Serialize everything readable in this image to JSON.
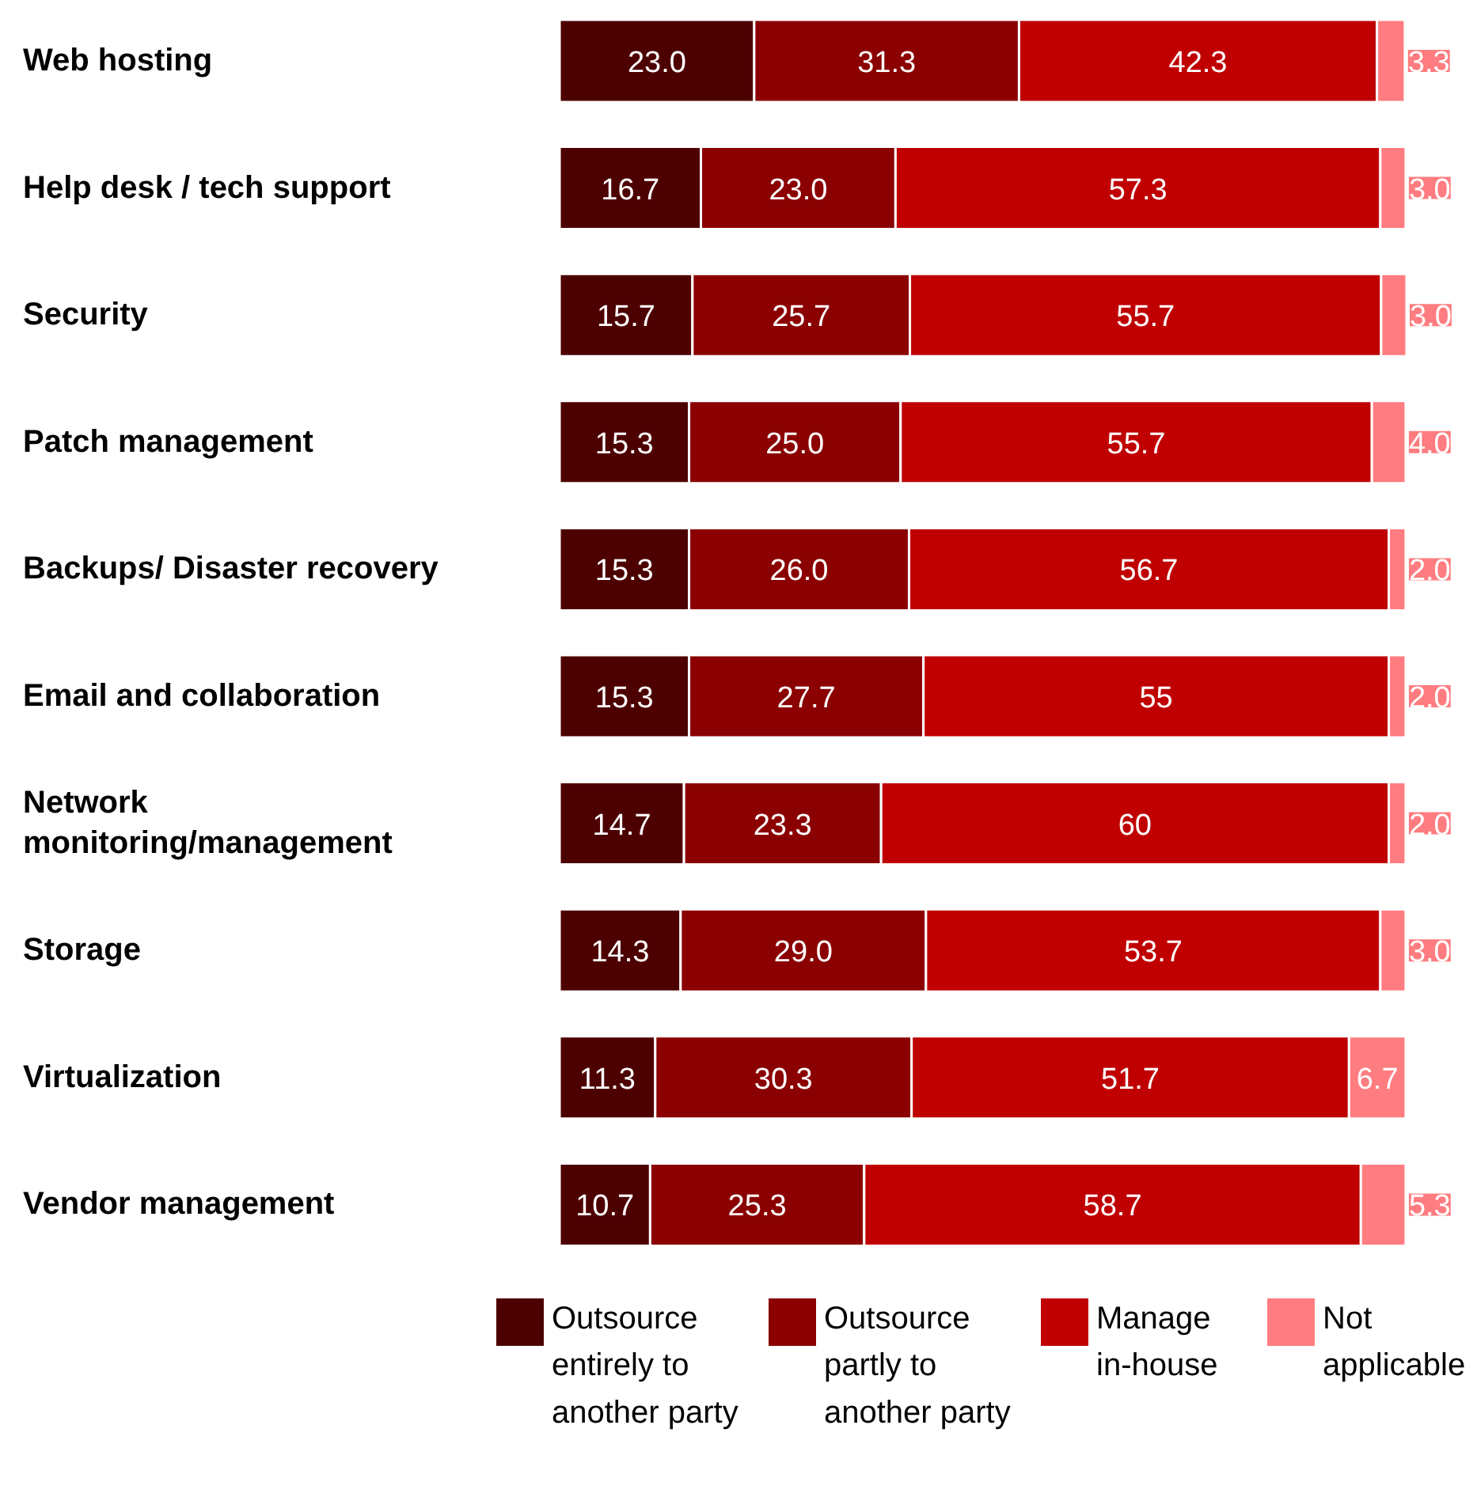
{
  "chart_data": {
    "type": "bar",
    "orientation": "horizontal",
    "stacked": true,
    "legend": "bottom",
    "categories": [
      "Web hosting",
      "Help desk / tech support",
      "Security",
      "Patch management",
      "Backups/ Disaster recovery",
      "Email and collaboration",
      "Network monitoring/management",
      "Storage",
      "Virtualization",
      "Vendor management"
    ],
    "series": [
      {
        "name": "Outsource entirely to another party",
        "color": "#4d0000",
        "values": [
          23.0,
          16.7,
          15.7,
          15.3,
          15.3,
          15.3,
          14.7,
          14.3,
          11.3,
          10.7
        ],
        "value_labels": [
          "23.0",
          "16.7",
          "15.7",
          "15.3",
          "15.3",
          "15.3",
          "14.7",
          "14.3",
          "11.3",
          "10.7"
        ]
      },
      {
        "name": "Outsource partly to another party",
        "color": "#8b0000",
        "values": [
          31.3,
          23.0,
          25.7,
          25.0,
          26.0,
          27.7,
          23.3,
          29.0,
          30.3,
          25.3
        ],
        "value_labels": [
          "31.3",
          "23.0",
          "25.7",
          "25.0",
          "26.0",
          "27.7",
          "23.3",
          "29.0",
          "30.3",
          "25.3"
        ]
      },
      {
        "name": "Manage in-house",
        "color": "#c00000",
        "values": [
          42.3,
          57.3,
          55.7,
          55.7,
          56.7,
          55,
          60,
          53.7,
          51.7,
          58.7
        ],
        "value_labels": [
          "42.3",
          "57.3",
          "55.7",
          "55.7",
          "56.7",
          "55",
          "60",
          "53.7",
          "51.7",
          "58.7"
        ]
      },
      {
        "name": "Not applicable",
        "color": "#ff7c80",
        "values": [
          3.3,
          3.0,
          3.0,
          4.0,
          2.0,
          2.0,
          2.0,
          3.0,
          6.7,
          5.3
        ],
        "value_labels": [
          "3.3",
          "3.0",
          "3.0",
          "4.0",
          "2.0",
          "2.0",
          "2.0",
          "3.0",
          "6.7",
          "5.3"
        ]
      }
    ]
  }
}
